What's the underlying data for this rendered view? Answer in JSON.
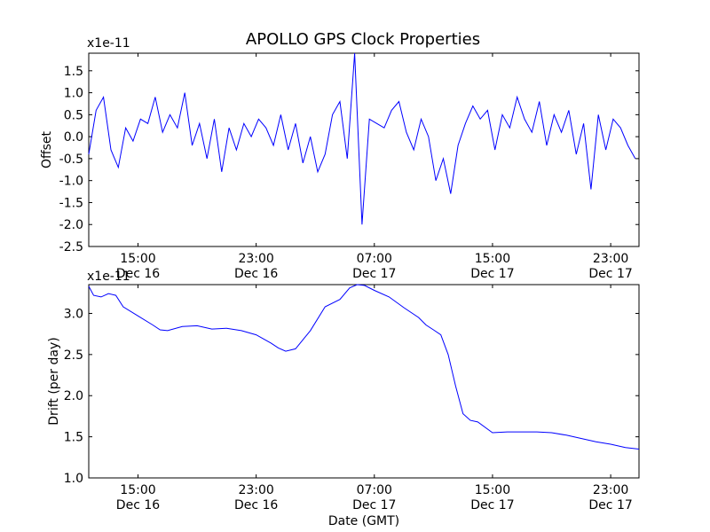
{
  "figure": {
    "title": "APOLLO GPS Clock Properties"
  },
  "chart_data": [
    {
      "type": "line",
      "title": "APOLLO GPS Clock Properties",
      "ylabel": "Offset",
      "xlabel": "",
      "y_multiplier": "x1e-11",
      "ylim": [
        -2.5,
        1.9
      ],
      "xlim": [
        "Dec 16 11:40",
        "Dec 17 24:55"
      ],
      "grid": false,
      "line_color": "#0000ff",
      "y_ticks": [
        "-2.5",
        "-2.0",
        "-1.5",
        "-1.0",
        "-0.5",
        "0.0",
        "0.5",
        "1.0",
        "1.5"
      ],
      "y_tick_values": [
        -2.5,
        -2.0,
        -1.5,
        -1.0,
        -0.5,
        0.0,
        0.5,
        1.0,
        1.5
      ],
      "x_ticks": [
        {
          "time": "15:00",
          "date": "Dec 16"
        },
        {
          "time": "23:00",
          "date": "Dec 16"
        },
        {
          "time": "07:00",
          "date": "Dec 17"
        },
        {
          "time": "15:00",
          "date": "Dec 17"
        },
        {
          "time": "23:00",
          "date": "Dec 17"
        }
      ],
      "x_tick_values": [
        "Dec 16 15:00",
        "Dec 16 23:00",
        "Dec 17 07:00",
        "Dec 17 15:00",
        "Dec 17 23:00"
      ],
      "series": [
        {
          "x": [
            "Dec 16 11:40",
            "Dec 16 12:10",
            "Dec 16 12:40",
            "Dec 16 13:10",
            "Dec 16 13:40",
            "Dec 16 14:10",
            "Dec 16 14:40",
            "Dec 16 15:10",
            "Dec 16 15:40",
            "Dec 16 16:10",
            "Dec 16 16:40",
            "Dec 16 17:10",
            "Dec 16 17:40",
            "Dec 16 18:10",
            "Dec 16 18:40",
            "Dec 16 19:10",
            "Dec 16 19:40",
            "Dec 16 20:10",
            "Dec 16 20:40",
            "Dec 16 21:10",
            "Dec 16 21:40",
            "Dec 16 22:10",
            "Dec 16 22:40",
            "Dec 16 23:10",
            "Dec 16 23:40",
            "Dec 17 00:10",
            "Dec 17 00:40",
            "Dec 17 01:10",
            "Dec 17 01:40",
            "Dec 17 02:10",
            "Dec 17 02:40",
            "Dec 17 03:10",
            "Dec 17 03:40",
            "Dec 17 04:10",
            "Dec 17 04:40",
            "Dec 17 05:10",
            "Dec 17 05:40",
            "Dec 17 06:10",
            "Dec 17 06:40",
            "Dec 17 07:10",
            "Dec 17 07:40",
            "Dec 17 08:10",
            "Dec 17 08:40",
            "Dec 17 09:10",
            "Dec 17 09:40",
            "Dec 17 10:10",
            "Dec 17 10:40",
            "Dec 17 11:10",
            "Dec 17 11:40",
            "Dec 17 12:10",
            "Dec 17 12:40",
            "Dec 17 13:10",
            "Dec 17 13:40",
            "Dec 17 14:10",
            "Dec 17 14:40",
            "Dec 17 15:10",
            "Dec 17 15:40",
            "Dec 17 16:10",
            "Dec 17 16:40",
            "Dec 17 17:10",
            "Dec 17 17:40",
            "Dec 17 18:10",
            "Dec 17 18:40",
            "Dec 17 19:10",
            "Dec 17 19:40",
            "Dec 17 20:10",
            "Dec 17 20:40",
            "Dec 17 21:10",
            "Dec 17 21:40",
            "Dec 17 22:10",
            "Dec 17 22:40",
            "Dec 17 23:10",
            "Dec 17 23:40",
            "Dec 18 00:10",
            "Dec 18 00:40"
          ],
          "y": [
            -0.4,
            0.6,
            0.9,
            -0.3,
            -0.7,
            0.2,
            -0.1,
            0.4,
            0.3,
            0.9,
            0.1,
            0.5,
            0.2,
            1.0,
            -0.2,
            0.3,
            -0.5,
            0.4,
            -0.8,
            0.2,
            -0.3,
            0.3,
            0.0,
            0.4,
            0.2,
            -0.2,
            0.5,
            -0.3,
            0.3,
            -0.6,
            0.0,
            -0.8,
            -0.4,
            0.5,
            0.8,
            -0.5,
            1.9,
            -2.0,
            0.4,
            0.3,
            0.2,
            0.6,
            0.8,
            0.1,
            -0.3,
            0.4,
            0.0,
            -1.0,
            -0.5,
            -1.3,
            -0.2,
            0.3,
            0.7,
            0.4,
            0.6,
            -0.3,
            0.5,
            0.2,
            0.9,
            0.4,
            0.1,
            0.8,
            -0.2,
            0.5,
            0.1,
            0.6,
            -0.4,
            0.3,
            -1.2,
            0.5,
            -0.3,
            0.4,
            0.2,
            -0.2,
            -0.5
          ]
        }
      ]
    },
    {
      "type": "line",
      "title": "",
      "ylabel": "Drift (per day)",
      "xlabel": "Date (GMT)",
      "y_multiplier": "x1e-11",
      "ylim": [
        1.0,
        3.35
      ],
      "xlim": [
        "Dec 16 11:40",
        "Dec 17 24:55"
      ],
      "grid": false,
      "line_color": "#0000ff",
      "y_ticks": [
        "1.0",
        "1.5",
        "2.0",
        "2.5",
        "3.0"
      ],
      "y_tick_values": [
        1.0,
        1.5,
        2.0,
        2.5,
        3.0
      ],
      "x_ticks": [
        {
          "time": "15:00",
          "date": "Dec 16"
        },
        {
          "time": "23:00",
          "date": "Dec 16"
        },
        {
          "time": "07:00",
          "date": "Dec 17"
        },
        {
          "time": "15:00",
          "date": "Dec 17"
        },
        {
          "time": "23:00",
          "date": "Dec 17"
        }
      ],
      "x_tick_values": [
        "Dec 16 15:00",
        "Dec 16 23:00",
        "Dec 17 07:00",
        "Dec 17 15:00",
        "Dec 17 23:00"
      ],
      "series": [
        {
          "x": [
            "Dec 16 11:40",
            "Dec 16 12:00",
            "Dec 16 12:30",
            "Dec 16 13:00",
            "Dec 16 13:30",
            "Dec 16 14:00",
            "Dec 16 15:00",
            "Dec 16 16:00",
            "Dec 16 16:30",
            "Dec 16 17:00",
            "Dec 16 18:00",
            "Dec 16 19:00",
            "Dec 16 20:00",
            "Dec 16 21:00",
            "Dec 16 22:00",
            "Dec 16 23:00",
            "Dec 17 00:00",
            "Dec 17 00:30",
            "Dec 17 01:00",
            "Dec 17 01:40",
            "Dec 17 02:40",
            "Dec 17 03:40",
            "Dec 17 04:40",
            "Dec 17 05:20",
            "Dec 17 05:50",
            "Dec 17 06:20",
            "Dec 17 07:00",
            "Dec 17 08:00",
            "Dec 17 09:00",
            "Dec 17 10:00",
            "Dec 17 10:30",
            "Dec 17 11:00",
            "Dec 17 11:30",
            "Dec 17 12:00",
            "Dec 17 12:30",
            "Dec 17 13:00",
            "Dec 17 13:30",
            "Dec 17 14:00",
            "Dec 17 15:00",
            "Dec 17 16:00",
            "Dec 17 17:00",
            "Dec 17 18:00",
            "Dec 17 19:00",
            "Dec 17 20:00",
            "Dec 17 21:00",
            "Dec 17 22:00",
            "Dec 17 23:00",
            "Dec 17 24:00",
            "Dec 17 24:55"
          ],
          "y": [
            3.33,
            3.22,
            3.2,
            3.24,
            3.22,
            3.08,
            2.97,
            2.86,
            2.8,
            2.79,
            2.84,
            2.85,
            2.81,
            2.82,
            2.79,
            2.74,
            2.64,
            2.58,
            2.54,
            2.57,
            2.79,
            3.08,
            3.17,
            3.31,
            3.35,
            3.34,
            3.28,
            3.2,
            3.07,
            2.95,
            2.86,
            2.8,
            2.74,
            2.5,
            2.12,
            1.78,
            1.7,
            1.68,
            1.55,
            1.56,
            1.56,
            1.56,
            1.55,
            1.52,
            1.48,
            1.44,
            1.41,
            1.37,
            1.35
          ]
        }
      ]
    }
  ]
}
